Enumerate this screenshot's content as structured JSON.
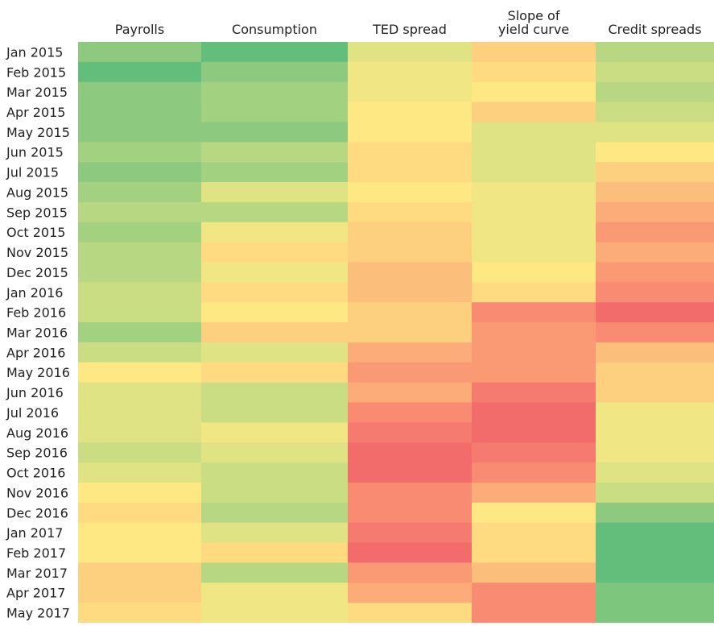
{
  "chart_data": {
    "type": "heatmap",
    "columns": [
      "Payrolls",
      "Consumption",
      "TED spread",
      "Slope of\nyield curve",
      "Credit spreads"
    ],
    "rows": [
      "Jan 2015",
      "Feb 2015",
      "Mar 2015",
      "Apr 2015",
      "May 2015",
      "Jun 2015",
      "Jul 2015",
      "Aug 2015",
      "Sep 2015",
      "Oct 2015",
      "Nov 2015",
      "Dec 2015",
      "Jan 2016",
      "Feb 2016",
      "Mar 2016",
      "Apr 2016",
      "May 2016",
      "Jun 2016",
      "Jul 2016",
      "Aug 2016",
      "Sep 2016",
      "Oct 2016",
      "Nov 2016",
      "Dec 2016",
      "Jan 2017",
      "Feb 2017",
      "Mar 2017",
      "Apr 2017",
      "May 2017"
    ],
    "cell_colors": [
      [
        "#8dca7f",
        "#63be7b",
        "#dfe383",
        "#fdd07f",
        "#b7d782"
      ],
      [
        "#63be7b",
        "#8dca7f",
        "#f0e684",
        "#fedb81",
        "#cbdd83"
      ],
      [
        "#8dca7f",
        "#a2d180",
        "#f0e684",
        "#fee883",
        "#b7d782"
      ],
      [
        "#8dca7f",
        "#a2d180",
        "#fee883",
        "#fdd07f",
        "#cbdd83"
      ],
      [
        "#8dca7f",
        "#8dca7f",
        "#fee883",
        "#dfe383",
        "#dfe383"
      ],
      [
        "#a2d180",
        "#b7d782",
        "#fedb81",
        "#dfe383",
        "#fee883"
      ],
      [
        "#8dca7f",
        "#a2d180",
        "#fedb81",
        "#dfe383",
        "#fdd07f"
      ],
      [
        "#a2d180",
        "#dfe383",
        "#fee883",
        "#f0e684",
        "#fcbf7b"
      ],
      [
        "#b7d782",
        "#b7d782",
        "#fedb81",
        "#f0e684",
        "#fbac78"
      ],
      [
        "#a2d180",
        "#f0e684",
        "#fdd07f",
        "#f0e684",
        "#f99a75"
      ],
      [
        "#b7d782",
        "#fedb81",
        "#fdd07f",
        "#f0e684",
        "#fbac78"
      ],
      [
        "#b7d782",
        "#f0e684",
        "#fcbf7b",
        "#fee883",
        "#f99a75"
      ],
      [
        "#cbdd83",
        "#fedb81",
        "#fcbf7b",
        "#fedb81",
        "#f88b72"
      ],
      [
        "#cbdd83",
        "#fee883",
        "#fdd07f",
        "#f88b72",
        "#f36c6c"
      ],
      [
        "#a2d180",
        "#fdd07f",
        "#fdd07f",
        "#f99a75",
        "#f88b72"
      ],
      [
        "#cbdd83",
        "#dfe383",
        "#fbac78",
        "#f99a75",
        "#fcbf7b"
      ],
      [
        "#fee883",
        "#fedb81",
        "#f99a75",
        "#f99a75",
        "#fdd07f"
      ],
      [
        "#dfe383",
        "#cbdd83",
        "#fbac78",
        "#f57a6f",
        "#fdd07f"
      ],
      [
        "#dfe383",
        "#cbdd83",
        "#f88b72",
        "#f36c6c",
        "#f0e684"
      ],
      [
        "#dfe383",
        "#f0e684",
        "#f57a6f",
        "#f36c6c",
        "#f0e684"
      ],
      [
        "#cbdd83",
        "#dfe383",
        "#f36c6c",
        "#f57a6f",
        "#f0e684"
      ],
      [
        "#dfe383",
        "#cbdd83",
        "#f36c6c",
        "#f88b72",
        "#dfe383"
      ],
      [
        "#fee883",
        "#cbdd83",
        "#f88b72",
        "#fbac78",
        "#cbdd83"
      ],
      [
        "#fedb81",
        "#b7d782",
        "#f88b72",
        "#fee883",
        "#8dca7f"
      ],
      [
        "#fee883",
        "#dfe383",
        "#f57a6f",
        "#fedb81",
        "#63be7b"
      ],
      [
        "#fee883",
        "#fedb81",
        "#f36c6c",
        "#fedb81",
        "#63be7b"
      ],
      [
        "#fdd07f",
        "#b7d782",
        "#f99a75",
        "#fcbf7b",
        "#63be7b"
      ],
      [
        "#fdd07f",
        "#f0e684",
        "#fbac78",
        "#f88b72",
        "#7dc67e"
      ],
      [
        "#fedb81",
        "#f0e684",
        "#fedb81",
        "#f88b72",
        "#7dc67e"
      ]
    ]
  }
}
